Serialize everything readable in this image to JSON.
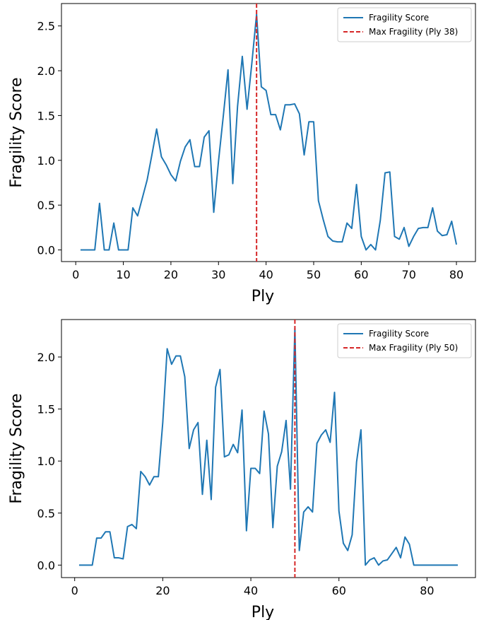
{
  "chart_data": [
    {
      "type": "line",
      "xlabel": "Ply",
      "ylabel": "Fragility Score",
      "xlim": [
        -3,
        84
      ],
      "ylim": [
        -0.13,
        2.75
      ],
      "xticks": [
        0,
        10,
        20,
        30,
        40,
        50,
        60,
        70,
        80
      ],
      "xtick_labels": [
        "0",
        "10",
        "20",
        "30",
        "40",
        "50",
        "60",
        "70",
        "80"
      ],
      "yticks": [
        0.0,
        0.5,
        1.0,
        1.5,
        2.0,
        2.5
      ],
      "ytick_labels": [
        "0.0",
        "0.5",
        "1.0",
        "1.5",
        "2.0",
        "2.5"
      ],
      "grid": false,
      "legend_position": "top-right",
      "colors": {
        "line": "#1f77b4",
        "vline": "#d62728"
      },
      "series": [
        {
          "name": "Fragility Score",
          "x": [
            1,
            2,
            3,
            4,
            5,
            6,
            7,
            8,
            9,
            10,
            11,
            12,
            13,
            14,
            15,
            16,
            17,
            18,
            19,
            20,
            21,
            22,
            23,
            24,
            25,
            26,
            27,
            28,
            29,
            30,
            31,
            32,
            33,
            34,
            35,
            36,
            37,
            38,
            39,
            40,
            41,
            42,
            43,
            44,
            45,
            46,
            47,
            48,
            49,
            50,
            51,
            52,
            53,
            54,
            55,
            56,
            57,
            58,
            59,
            60,
            61,
            62,
            63,
            64,
            65,
            66,
            67,
            68,
            69,
            70,
            71,
            72,
            73,
            74,
            75,
            76,
            77,
            78,
            79,
            80
          ],
          "y": [
            0.0,
            0.0,
            0.0,
            0.0,
            0.52,
            0.0,
            0.0,
            0.3,
            0.0,
            0.0,
            0.0,
            0.47,
            0.38,
            0.58,
            0.78,
            1.06,
            1.35,
            1.04,
            0.95,
            0.84,
            0.77,
            0.99,
            1.15,
            1.23,
            0.93,
            0.93,
            1.26,
            1.33,
            0.42,
            0.99,
            1.49,
            2.01,
            0.74,
            1.6,
            2.16,
            1.57,
            2.08,
            2.63,
            1.82,
            1.78,
            1.51,
            1.51,
            1.34,
            1.62,
            1.62,
            1.63,
            1.52,
            1.06,
            1.43,
            1.43,
            0.55,
            0.34,
            0.15,
            0.1,
            0.09,
            0.09,
            0.3,
            0.24,
            0.73,
            0.15,
            0.0,
            0.06,
            0.0,
            0.33,
            0.86,
            0.87,
            0.15,
            0.12,
            0.25,
            0.04,
            0.15,
            0.24,
            0.25,
            0.25,
            0.47,
            0.21,
            0.16,
            0.17,
            0.32,
            0.06
          ]
        }
      ],
      "vline": {
        "name": "Max Fragility (Ply 38)",
        "x": 38
      }
    },
    {
      "type": "line",
      "xlabel": "Ply",
      "ylabel": "Fragility Score",
      "xlim": [
        -3,
        91
      ],
      "ylim": [
        -0.12,
        2.36
      ],
      "xticks": [
        0,
        20,
        40,
        60,
        80
      ],
      "xtick_labels": [
        "0",
        "20",
        "40",
        "60",
        "80"
      ],
      "yticks": [
        0.0,
        0.5,
        1.0,
        1.5,
        2.0
      ],
      "ytick_labels": [
        "0.0",
        "0.5",
        "1.0",
        "1.5",
        "2.0"
      ],
      "grid": false,
      "legend_position": "top-right",
      "colors": {
        "line": "#1f77b4",
        "vline": "#d62728"
      },
      "series": [
        {
          "name": "Fragility Score",
          "x": [
            1,
            2,
            3,
            4,
            5,
            6,
            7,
            8,
            9,
            10,
            11,
            12,
            13,
            14,
            15,
            16,
            17,
            18,
            19,
            20,
            21,
            22,
            23,
            24,
            25,
            26,
            27,
            28,
            29,
            30,
            31,
            32,
            33,
            34,
            35,
            36,
            37,
            38,
            39,
            40,
            41,
            42,
            43,
            44,
            45,
            46,
            47,
            48,
            49,
            50,
            51,
            52,
            53,
            54,
            55,
            56,
            57,
            58,
            59,
            60,
            61,
            62,
            63,
            64,
            65,
            66,
            67,
            68,
            69,
            70,
            71,
            72,
            73,
            74,
            75,
            76,
            77,
            78,
            79,
            80,
            81,
            82,
            83,
            84,
            85,
            86,
            87
          ],
          "y": [
            0.0,
            0.0,
            0.0,
            0.0,
            0.26,
            0.26,
            0.32,
            0.32,
            0.07,
            0.07,
            0.06,
            0.37,
            0.39,
            0.35,
            0.9,
            0.85,
            0.77,
            0.85,
            0.85,
            1.37,
            2.08,
            1.93,
            2.01,
            2.01,
            1.81,
            1.12,
            1.3,
            1.37,
            0.68,
            1.2,
            0.63,
            1.71,
            1.88,
            1.04,
            1.06,
            1.16,
            1.08,
            1.49,
            0.33,
            0.93,
            0.93,
            0.88,
            1.48,
            1.26,
            0.36,
            0.95,
            1.09,
            1.39,
            0.73,
            2.28,
            0.14,
            0.51,
            0.56,
            0.51,
            1.17,
            1.25,
            1.3,
            1.18,
            1.66,
            0.52,
            0.21,
            0.14,
            0.29,
            0.99,
            1.3,
            0.0,
            0.05,
            0.07,
            0.0,
            0.04,
            0.05,
            0.11,
            0.17,
            0.07,
            0.27,
            0.2,
            0.0,
            0.0,
            0.0,
            0.0,
            0.0,
            0.0,
            0.0,
            0.0,
            0.0,
            0.0,
            0.0
          ]
        }
      ],
      "vline": {
        "name": "Max Fragility (Ply 50)",
        "x": 50
      }
    }
  ]
}
